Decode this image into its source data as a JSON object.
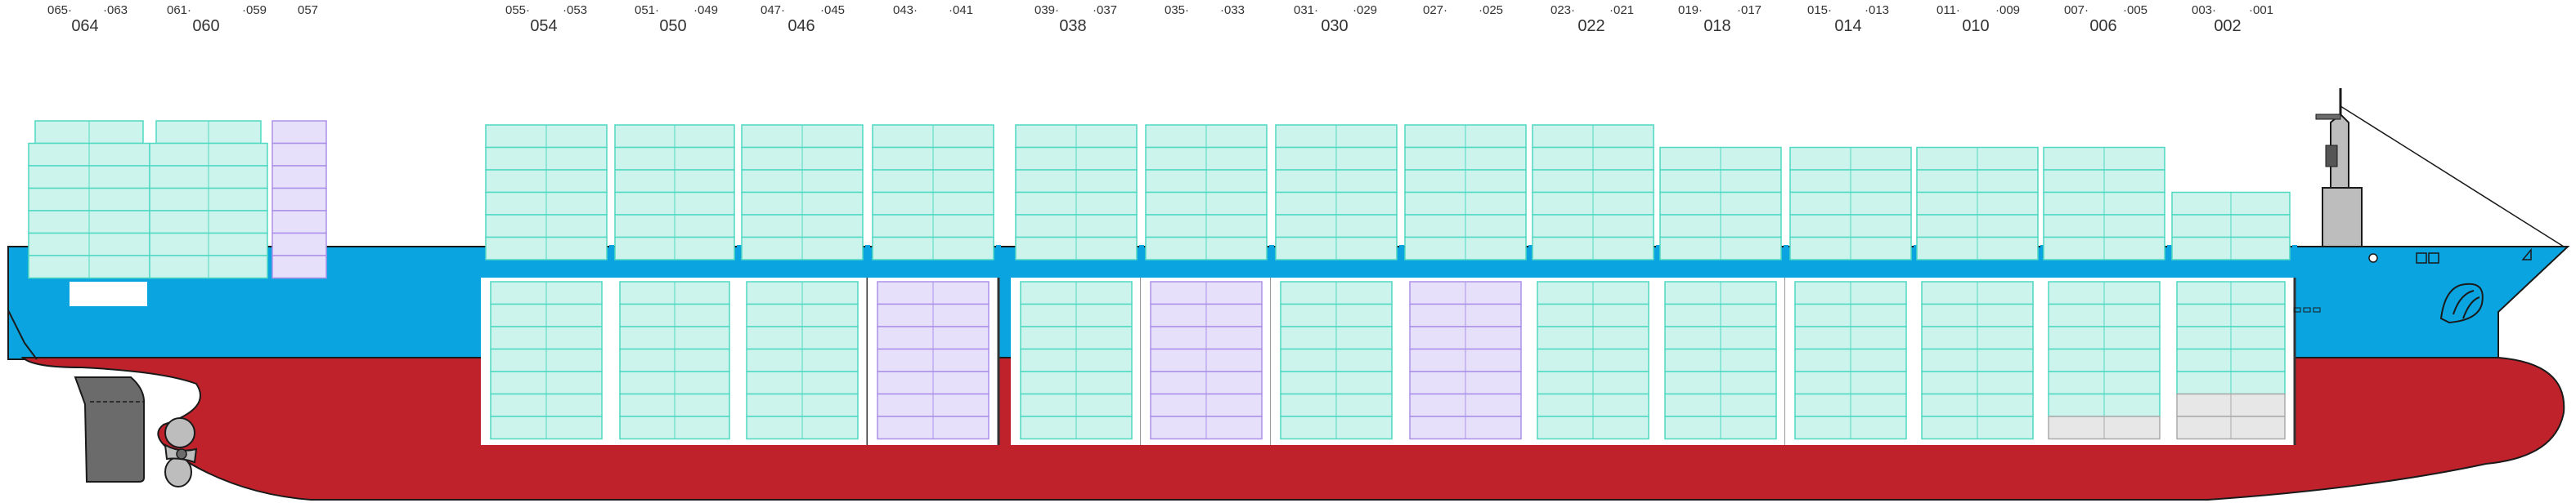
{
  "colors": {
    "hull_upper": "#0aa5e0",
    "hull_lower": "#c0222b",
    "standard_fill": "#cdf4ec",
    "standard_stroke": "#4fd8c2",
    "reefer_fill": "#e7e0fb",
    "reefer_stroke": "#ab90e8",
    "empty_fill": "#e7e7e7",
    "empty_stroke": "#aaaaaa",
    "hatch_cover": "#0aa5e0",
    "superstructure": "#bdbdbd",
    "rudder": "#6b6b6b"
  },
  "bay_labels": [
    {
      "odd_fwd": "065",
      "forty": "064",
      "odd_aft": "063"
    },
    {
      "odd_fwd": "061",
      "forty": "060",
      "odd_aft": "059"
    },
    {
      "odd_fwd": "",
      "forty": "",
      "odd_aft": "057",
      "single": "057"
    },
    {
      "odd_fwd": "055",
      "forty": "054",
      "odd_aft": "053"
    },
    {
      "odd_fwd": "051",
      "forty": "050",
      "odd_aft": "049"
    },
    {
      "odd_fwd": "047",
      "forty": "046",
      "odd_aft": "045"
    },
    {
      "odd_fwd": "043",
      "forty": "",
      "odd_aft": "041"
    },
    {
      "odd_fwd": "039",
      "forty": "038",
      "odd_aft": "037"
    },
    {
      "odd_fwd": "035",
      "forty": "",
      "odd_aft": "033"
    },
    {
      "odd_fwd": "031",
      "forty": "030",
      "odd_aft": "029"
    },
    {
      "odd_fwd": "027",
      "forty": "",
      "odd_aft": "025"
    },
    {
      "odd_fwd": "023",
      "forty": "022",
      "odd_aft": "021"
    },
    {
      "odd_fwd": "019",
      "forty": "018",
      "odd_aft": "017"
    },
    {
      "odd_fwd": "015",
      "forty": "014",
      "odd_aft": "013"
    },
    {
      "odd_fwd": "011",
      "forty": "010",
      "odd_aft": "009"
    },
    {
      "odd_fwd": "007",
      "forty": "006",
      "odd_aft": "005"
    },
    {
      "odd_fwd": "003",
      "forty": "002",
      "odd_aft": "001"
    }
  ],
  "bays": [
    {
      "id": "064",
      "deck": {
        "tiers": 7,
        "type": "standard",
        "topRowShort": true
      },
      "hold": null
    },
    {
      "id": "060",
      "deck": {
        "tiers": 7,
        "type": "standard",
        "topRowShort": true
      },
      "hold": null
    },
    {
      "id": "057",
      "deck": {
        "tiers": 7,
        "type": "reefer",
        "single": true
      },
      "hold": null
    },
    {
      "id": "054",
      "deck": {
        "tiers": 6,
        "type": "standard"
      },
      "hold": {
        "tiers": 7,
        "type": "standard"
      }
    },
    {
      "id": "050",
      "deck": {
        "tiers": 6,
        "type": "standard"
      },
      "hold": {
        "tiers": 7,
        "type": "standard"
      }
    },
    {
      "id": "046",
      "deck": {
        "tiers": 6,
        "type": "standard"
      },
      "hold": {
        "tiers": 7,
        "type": "standard"
      }
    },
    {
      "id": "042",
      "deck": {
        "tiers": 6,
        "type": "standard"
      },
      "hold": {
        "tiers": 7,
        "type": "reefer"
      }
    },
    {
      "id": "038",
      "deck": {
        "tiers": 6,
        "type": "standard"
      },
      "hold": {
        "tiers": 7,
        "type": "standard"
      }
    },
    {
      "id": "034",
      "deck": {
        "tiers": 6,
        "type": "standard"
      },
      "hold": {
        "tiers": 7,
        "type": "reefer"
      }
    },
    {
      "id": "030",
      "deck": {
        "tiers": 6,
        "type": "standard"
      },
      "hold": {
        "tiers": 7,
        "type": "standard"
      }
    },
    {
      "id": "026",
      "deck": {
        "tiers": 6,
        "type": "standard"
      },
      "hold": {
        "tiers": 7,
        "type": "reefer"
      }
    },
    {
      "id": "022",
      "deck": {
        "tiers": 6,
        "type": "standard"
      },
      "hold": {
        "tiers": 7,
        "type": "standard"
      }
    },
    {
      "id": "018",
      "deck": {
        "tiers": 5,
        "type": "standard"
      },
      "hold": {
        "tiers": 7,
        "type": "standard"
      }
    },
    {
      "id": "014",
      "deck": {
        "tiers": 5,
        "type": "standard"
      },
      "hold": {
        "tiers": 7,
        "type": "standard"
      }
    },
    {
      "id": "010",
      "deck": {
        "tiers": 5,
        "type": "standard"
      },
      "hold": {
        "tiers": 7,
        "type": "standard"
      }
    },
    {
      "id": "006",
      "deck": {
        "tiers": 5,
        "type": "standard"
      },
      "hold": {
        "tiers": 7,
        "type": "standard",
        "emptyBottom": 1
      }
    },
    {
      "id": "002",
      "deck": {
        "tiers": 3,
        "type": "standard"
      },
      "hold": {
        "tiers": 7,
        "type": "standard",
        "emptyBottom": 2
      }
    }
  ],
  "icons": [
    "propeller-icon",
    "rudder-icon",
    "bridge-icon",
    "mast-icon",
    "anchor-icon",
    "bulbous-bow-icon"
  ]
}
